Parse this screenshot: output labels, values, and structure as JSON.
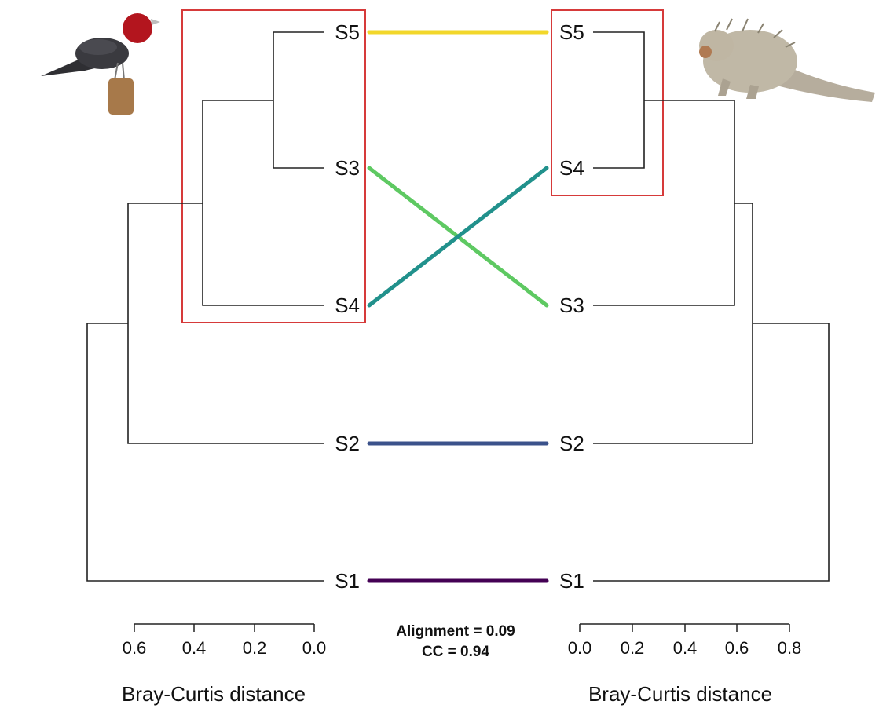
{
  "chart_data": {
    "type": "tanglegram",
    "left": {
      "leaves": [
        "S5",
        "S3",
        "S4",
        "S2",
        "S1"
      ],
      "xlabel": "Bray-Curtis distance",
      "ticks": [
        "0.6",
        "0.4",
        "0.2",
        "0.0"
      ],
      "xlim": [
        0.6,
        0.0
      ],
      "highlight_cluster": [
        "S5",
        "S3",
        "S4"
      ]
    },
    "right": {
      "leaves": [
        "S5",
        "S4",
        "S3",
        "S2",
        "S1"
      ],
      "xlabel": "Bray-Curtis distance",
      "ticks": [
        "0.0",
        "0.2",
        "0.4",
        "0.6",
        "0.8"
      ],
      "xlim": [
        0.0,
        0.8
      ],
      "highlight_cluster": [
        "S5",
        "S4"
      ]
    },
    "connections": [
      {
        "leaf": "S5",
        "color": "#f2d72a"
      },
      {
        "leaf": "S3",
        "color": "#5ec962"
      },
      {
        "leaf": "S4",
        "color": "#21918c"
      },
      {
        "leaf": "S2",
        "color": "#3b528b"
      },
      {
        "leaf": "S1",
        "color": "#440154"
      }
    ],
    "stats": {
      "alignment": "Alignment  = 0.09",
      "cc": "CC = 0.94"
    },
    "highlight_color": "#d63a3a"
  },
  "icons": {
    "left_animal": "red-headed-tanager-bird-icon",
    "right_animal": "porcupine-rodent-icon"
  }
}
